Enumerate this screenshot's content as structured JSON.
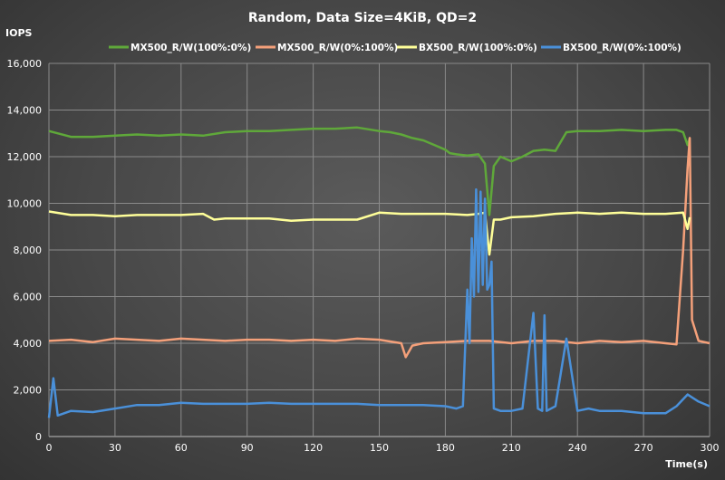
{
  "chart_data": {
    "type": "line",
    "title": "Random,  Data Size=4KiB,  QD=2",
    "ylabel": "IOPS",
    "xlabel": "Time(s)",
    "xlim": [
      0,
      300
    ],
    "ylim": [
      0,
      16000
    ],
    "x_ticks": [
      0,
      30,
      60,
      90,
      120,
      150,
      180,
      210,
      240,
      270,
      300
    ],
    "y_ticks": [
      0,
      2000,
      4000,
      6000,
      8000,
      10000,
      12000,
      14000,
      16000
    ],
    "y_tick_labels": [
      "0",
      "2,000",
      "4,000",
      "6,000",
      "8,000",
      "10,000",
      "12,000",
      "14,000",
      "16,000"
    ],
    "grid": true,
    "legend_position": "top",
    "series": [
      {
        "name": "MX500_R/W(100%:0%)",
        "color": "#5fa83a",
        "x": [
          0,
          10,
          20,
          30,
          40,
          50,
          60,
          70,
          80,
          90,
          100,
          110,
          120,
          130,
          140,
          150,
          155,
          160,
          165,
          170,
          175,
          180,
          182,
          185,
          190,
          195,
          198,
          200,
          202,
          205,
          210,
          215,
          220,
          225,
          230,
          235,
          240,
          250,
          260,
          270,
          280,
          285,
          288,
          290,
          291
        ],
        "y": [
          13100,
          12850,
          12850,
          12900,
          12950,
          12900,
          12950,
          12900,
          13050,
          13100,
          13100,
          13150,
          13200,
          13200,
          13250,
          13100,
          13050,
          12950,
          12800,
          12700,
          12500,
          12300,
          12150,
          12100,
          12050,
          12100,
          11700,
          9500,
          11600,
          12000,
          11800,
          12000,
          12250,
          12300,
          12250,
          13050,
          13100,
          13100,
          13150,
          13100,
          13150,
          13150,
          13050,
          12500,
          12800
        ]
      },
      {
        "name": "MX500_R/W(0%:100%)",
        "color": "#f4a07a",
        "x": [
          0,
          10,
          20,
          30,
          40,
          50,
          60,
          70,
          80,
          90,
          100,
          110,
          120,
          130,
          140,
          150,
          160,
          162,
          165,
          170,
          180,
          190,
          200,
          210,
          220,
          230,
          240,
          250,
          260,
          270,
          280,
          285,
          288,
          290,
          291,
          292,
          295,
          300
        ],
        "y": [
          4100,
          4150,
          4050,
          4200,
          4150,
          4100,
          4200,
          4150,
          4100,
          4150,
          4150,
          4100,
          4150,
          4100,
          4200,
          4150,
          4000,
          3400,
          3900,
          4000,
          4050,
          4100,
          4100,
          4000,
          4100,
          4100,
          4000,
          4100,
          4050,
          4100,
          4000,
          3950,
          8000,
          11500,
          12800,
          5000,
          4100,
          4000
        ]
      },
      {
        "name": "BX500_R/W(100%:0%)",
        "color": "#ffff99",
        "x": [
          0,
          10,
          20,
          30,
          40,
          50,
          60,
          70,
          75,
          80,
          90,
          100,
          110,
          120,
          130,
          140,
          150,
          160,
          170,
          180,
          190,
          195,
          198,
          200,
          202,
          205,
          210,
          220,
          230,
          240,
          250,
          260,
          270,
          280,
          288,
          290,
          291
        ],
        "y": [
          9650,
          9500,
          9500,
          9450,
          9500,
          9500,
          9500,
          9550,
          9300,
          9350,
          9350,
          9350,
          9250,
          9300,
          9300,
          9300,
          9600,
          9550,
          9550,
          9550,
          9500,
          9550,
          9600,
          7800,
          9300,
          9300,
          9400,
          9450,
          9550,
          9600,
          9550,
          9600,
          9550,
          9550,
          9600,
          8900,
          9400
        ]
      },
      {
        "name": "BX500_R/W(0%:100%)",
        "color": "#4a90d9",
        "x": [
          0,
          2,
          4,
          10,
          20,
          30,
          40,
          50,
          60,
          70,
          80,
          90,
          100,
          110,
          120,
          130,
          140,
          150,
          160,
          170,
          180,
          185,
          188,
          190,
          191,
          192,
          193,
          194,
          195,
          196,
          197,
          198,
          199,
          200,
          201,
          202,
          205,
          210,
          215,
          220,
          222,
          224,
          225,
          226,
          230,
          235,
          240,
          245,
          250,
          260,
          270,
          280,
          285,
          290,
          295,
          300
        ],
        "y": [
          800,
          2500,
          900,
          1100,
          1050,
          1200,
          1350,
          1350,
          1450,
          1400,
          1400,
          1400,
          1450,
          1400,
          1400,
          1400,
          1400,
          1350,
          1350,
          1350,
          1300,
          1200,
          1300,
          6300,
          4000,
          8500,
          6000,
          10600,
          6200,
          10500,
          6500,
          10200,
          6300,
          6500,
          7500,
          1200,
          1100,
          1100,
          1200,
          5300,
          1200,
          1100,
          5200,
          1100,
          1300,
          4200,
          1100,
          1200,
          1100,
          1100,
          1000,
          1000,
          1300,
          1800,
          1500,
          1300
        ]
      }
    ]
  }
}
